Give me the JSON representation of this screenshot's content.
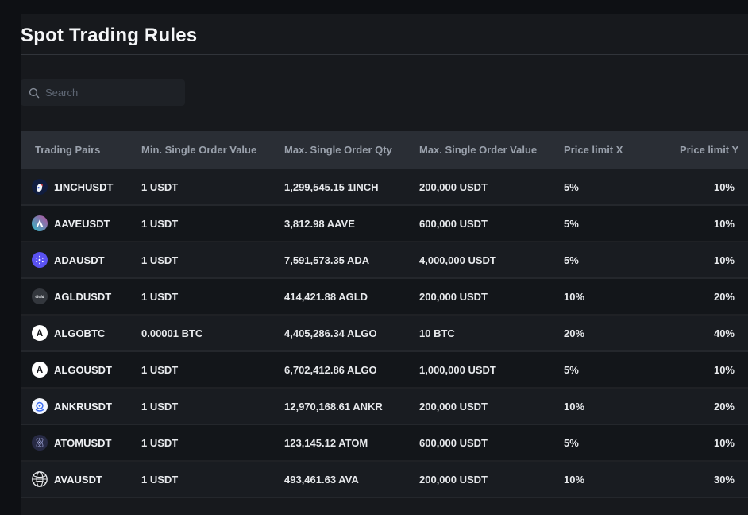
{
  "page": {
    "title": "Spot Trading Rules"
  },
  "search": {
    "placeholder": "Search"
  },
  "colors": {
    "page_background": "#17191d",
    "outer_background": "#0e1014",
    "header_row_background": "#2a2e35",
    "row_dark": "#13161a",
    "row_light": "#191c21",
    "header_text": "#9aa1ac",
    "cell_text": "#e7e9ec"
  },
  "table": {
    "columns": [
      "Trading Pairs",
      "Min. Single Order Value",
      "Max. Single Order Qty",
      "Max. Single Order Value",
      "Price limit X",
      "Price limit Y"
    ],
    "rows": [
      {
        "icon": "1inch-logo",
        "pair": "1INCHUSDT",
        "min_value": "1 USDT",
        "max_qty": "1,299,545.15 1INCH",
        "max_value": "200,000 USDT",
        "limit_x": "5%",
        "limit_y": "10%"
      },
      {
        "icon": "aave-logo",
        "pair": "AAVEUSDT",
        "min_value": "1 USDT",
        "max_qty": "3,812.98 AAVE",
        "max_value": "600,000 USDT",
        "limit_x": "5%",
        "limit_y": "10%"
      },
      {
        "icon": "ada-logo",
        "pair": "ADAUSDT",
        "min_value": "1 USDT",
        "max_qty": "7,591,573.35 ADA",
        "max_value": "4,000,000 USDT",
        "limit_x": "5%",
        "limit_y": "10%"
      },
      {
        "icon": "agld-logo",
        "pair": "AGLDUSDT",
        "min_value": "1 USDT",
        "max_qty": "414,421.88 AGLD",
        "max_value": "200,000 USDT",
        "limit_x": "10%",
        "limit_y": "20%"
      },
      {
        "icon": "algo-logo",
        "pair": "ALGOBTC",
        "min_value": "0.00001 BTC",
        "max_qty": "4,405,286.34 ALGO",
        "max_value": "10 BTC",
        "limit_x": "20%",
        "limit_y": "40%"
      },
      {
        "icon": "algo-logo",
        "pair": "ALGOUSDT",
        "min_value": "1 USDT",
        "max_qty": "6,702,412.86 ALGO",
        "max_value": "1,000,000 USDT",
        "limit_x": "5%",
        "limit_y": "10%"
      },
      {
        "icon": "ankr-logo",
        "pair": "ANKRUSDT",
        "min_value": "1 USDT",
        "max_qty": "12,970,168.61 ANKR",
        "max_value": "200,000 USDT",
        "limit_x": "10%",
        "limit_y": "20%"
      },
      {
        "icon": "atom-logo",
        "pair": "ATOMUSDT",
        "min_value": "1 USDT",
        "max_qty": "123,145.12 ATOM",
        "max_value": "600,000 USDT",
        "limit_x": "5%",
        "limit_y": "10%"
      },
      {
        "icon": "ava-logo",
        "pair": "AVAUSDT",
        "min_value": "1 USDT",
        "max_qty": "493,461.63 AVA",
        "max_value": "200,000 USDT",
        "limit_x": "10%",
        "limit_y": "30%"
      }
    ]
  }
}
